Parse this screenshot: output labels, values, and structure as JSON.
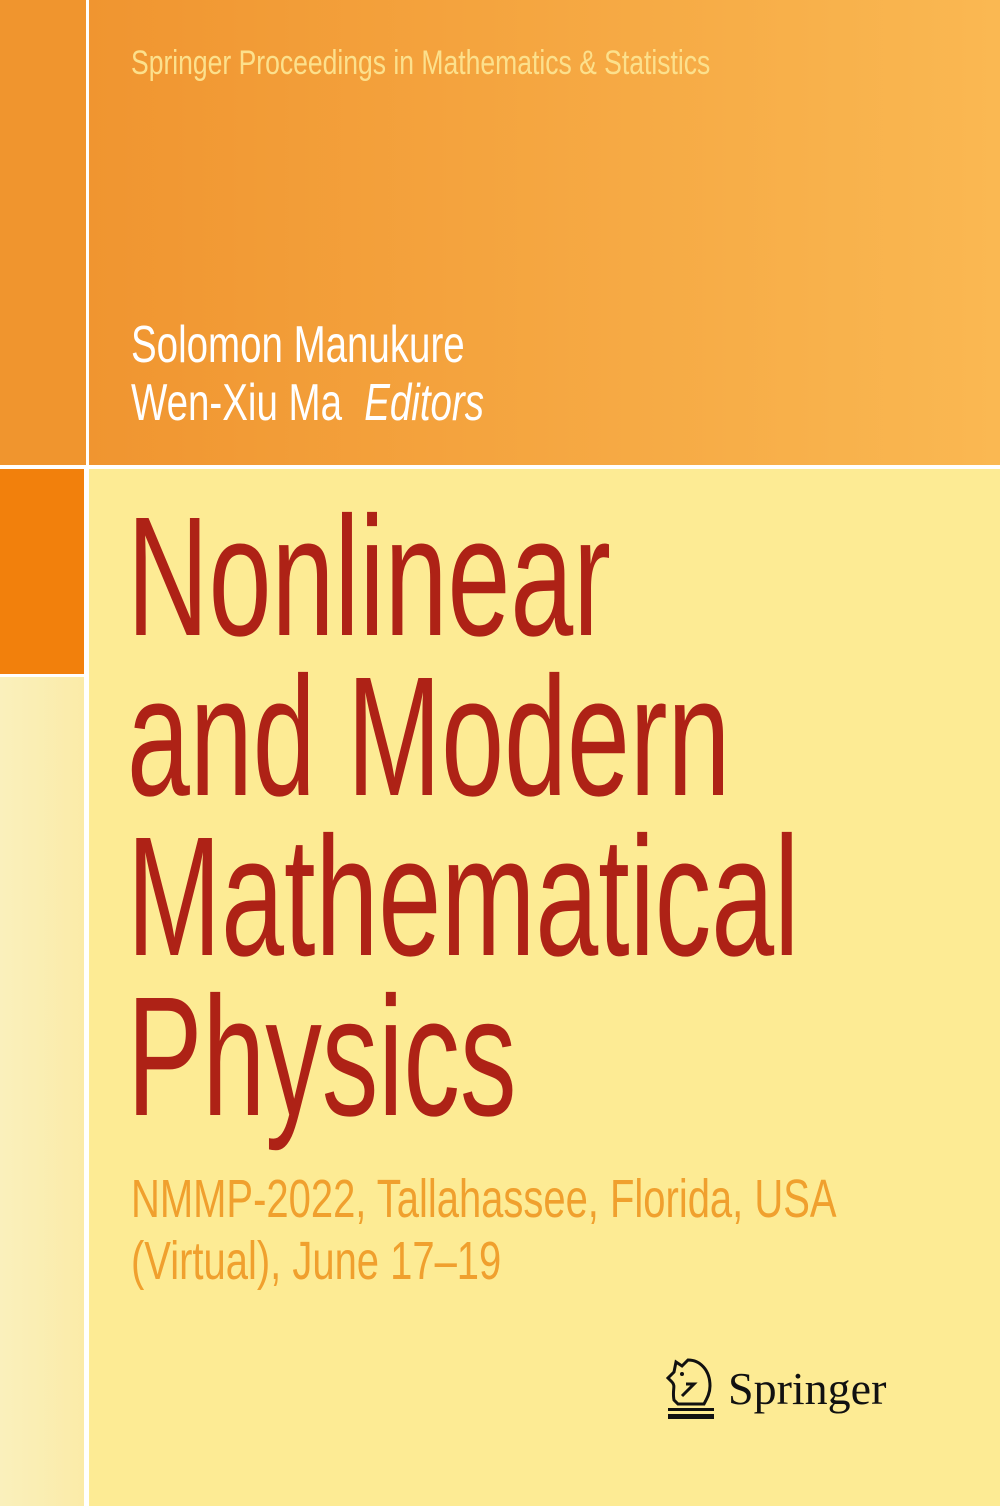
{
  "cover": {
    "series": "Springer Proceedings in Mathematics & Statistics",
    "editors": [
      "Solomon Manukure",
      "Wen-Xiu Ma"
    ],
    "editors_role": "Editors",
    "title_lines": [
      "Nonlinear",
      "and Modern",
      "Mathematical",
      "Physics"
    ],
    "subtitle_lines": [
      "NMMP-2022, Tallahassee, Florida, USA",
      "(Virtual), June 17–19"
    ],
    "publisher": "Springer",
    "colors": {
      "title": "#AE2216",
      "subtitle": "#F0A02E",
      "accent_orange": "#F2800C",
      "background": "#FDEB94"
    }
  }
}
